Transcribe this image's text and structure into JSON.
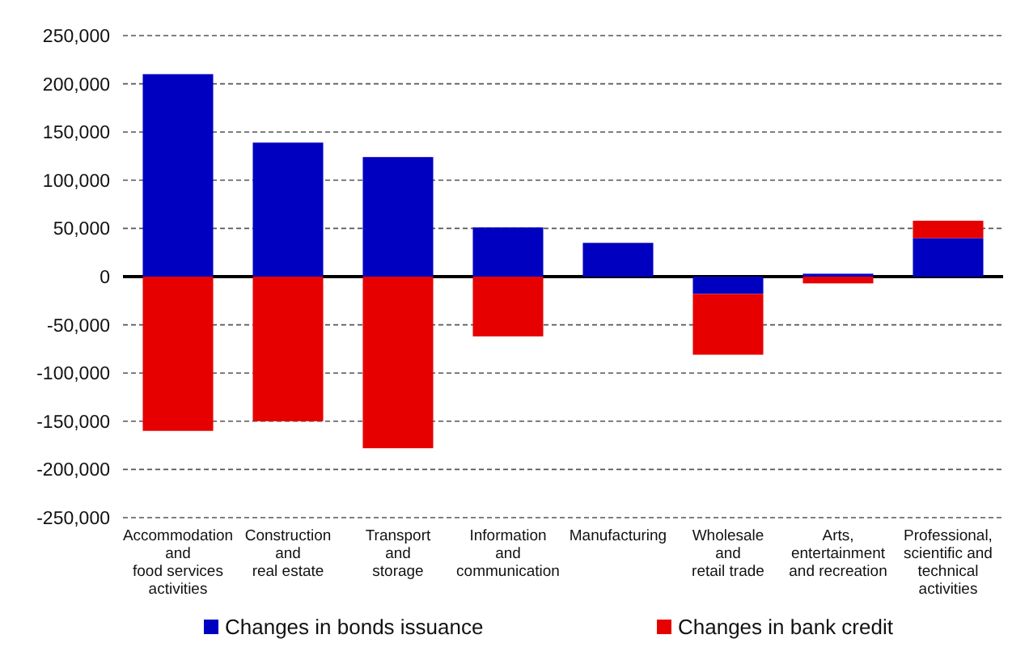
{
  "chart_data": {
    "type": "bar",
    "stacked": true,
    "categories": [
      "Accommodation\nand\nfood services\nactivities",
      "Construction\nand\nreal estate",
      "Transport\nand\nstorage",
      "Information\nand\ncommunication",
      "Manufacturing",
      "Wholesale\nand\nretail trade",
      "Arts,\nentertainment\nand recreation",
      "Professional,\nscientific and\ntechnical\nactivities"
    ],
    "series": [
      {
        "name": "Changes in bonds issuance",
        "color": "#0000c0",
        "values": [
          210000,
          139000,
          124000,
          51000,
          35000,
          -18000,
          3000,
          40000
        ]
      },
      {
        "name": "Changes in bank credit",
        "color": "#e60000",
        "values": [
          -160000,
          -150000,
          -178000,
          -62000,
          0,
          -63000,
          -7000,
          18000
        ]
      }
    ],
    "ylim": [
      -250000,
      250000
    ],
    "yticks": [
      {
        "value": -250000,
        "label": "-250,000"
      },
      {
        "value": -200000,
        "label": "-200,000"
      },
      {
        "value": -150000,
        "label": "-150,000"
      },
      {
        "value": -100000,
        "label": "-100,000"
      },
      {
        "value": -50000,
        "label": "-50,000"
      },
      {
        "value": 0,
        "label": "0"
      },
      {
        "value": 50000,
        "label": "50,000"
      },
      {
        "value": 100000,
        "label": "100,000"
      },
      {
        "value": 150000,
        "label": "150,000"
      },
      {
        "value": 200000,
        "label": "200,000"
      },
      {
        "value": 250000,
        "label": "250,000"
      }
    ],
    "grid": "y",
    "legend": "bottom"
  }
}
